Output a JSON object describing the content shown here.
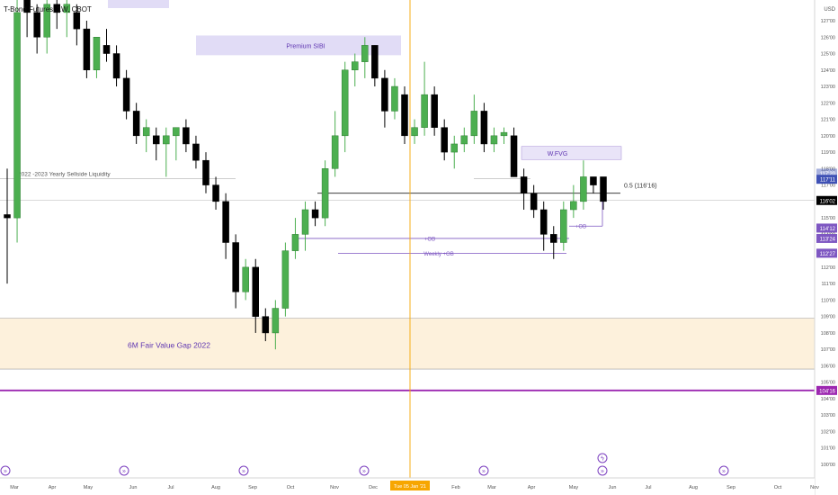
{
  "header": {
    "symbol_title": "T-Bond Futures, 1W, CBOT"
  },
  "price_scale": {
    "currency": "USD",
    "ticks": [
      "127'00",
      "126'00",
      "125'00",
      "124'00",
      "123'00",
      "122'00",
      "121'00",
      "120'00",
      "119'00",
      "118'00",
      "117'00",
      "116'00",
      "115'00",
      "114'00",
      "113'00",
      "112'00",
      "111'00",
      "110'00",
      "109'00",
      "108'00",
      "107'00",
      "106'00",
      "105'00",
      "104'00",
      "103'00",
      "102'00",
      "101'00",
      "100'00"
    ]
  },
  "time_axis": {
    "labels": [
      "Mar",
      "Apr",
      "May",
      "Jun",
      "Jul",
      "Aug",
      "Sep",
      "Oct",
      "Nov",
      "Dec",
      "Feb",
      "Mar",
      "Apr",
      "May",
      "Jun",
      "Jul",
      "Aug",
      "Sep",
      "Oct",
      "Nov"
    ],
    "crosshair_date": "Tue 05 Jan '21"
  },
  "annotations": {
    "premium_sibi": "Premium SIBI",
    "yearly_liquidity": "2022 -2023 Yearly Sellside Liquidity",
    "fvg_6m": "6M Fair Value Gap 2022",
    "wfvg": "W.FVG",
    "fib_level": "0.5 (116'16)",
    "ob_plus": "+OB",
    "weekly_ob": "Weekly +OB",
    "ob_small": "+OB"
  },
  "price_labels": {
    "current": "116'02",
    "l1": "117'11",
    "l1_faint": "117'20",
    "l2": "114'12",
    "l3": "113'24",
    "l4": "112'27",
    "l5": "104'16"
  },
  "colors": {
    "up": "#4caf50",
    "down": "#000000",
    "premium_zone": "#e1dcf6",
    "fvg_zone": "#fdf1dc",
    "wfvg_zone": "#e9e4f8",
    "ob_line": "#7e57c2",
    "magenta_line": "#9c27b0",
    "crosshair": "#f7a600",
    "label_purple": "#5e35b1"
  },
  "chart_data": {
    "type": "candlestick",
    "title": "T-Bond Futures, 1W, CBOT",
    "ylim": [
      99.5,
      128.5
    ],
    "candles": [
      {
        "o": 115.2,
        "h": 118.0,
        "l": 111.0,
        "c": 115.0
      },
      {
        "o": 115.0,
        "h": 129.0,
        "l": 113.5,
        "c": 127.5
      },
      {
        "o": 128.5,
        "h": 130.0,
        "l": 126.0,
        "c": 127.5
      },
      {
        "o": 127.5,
        "h": 128.0,
        "l": 125.0,
        "c": 126.0
      },
      {
        "o": 126.0,
        "h": 128.5,
        "l": 125.0,
        "c": 128.0
      },
      {
        "o": 128.0,
        "h": 129.0,
        "l": 126.5,
        "c": 127.5
      },
      {
        "o": 127.5,
        "h": 128.5,
        "l": 126.0,
        "c": 128.0
      },
      {
        "o": 127.5,
        "h": 128.0,
        "l": 125.5,
        "c": 126.5
      },
      {
        "o": 126.5,
        "h": 127.0,
        "l": 123.5,
        "c": 124.0
      },
      {
        "o": 124.0,
        "h": 126.0,
        "l": 123.5,
        "c": 126.0
      },
      {
        "o": 125.5,
        "h": 126.5,
        "l": 124.5,
        "c": 125.0
      },
      {
        "o": 125.0,
        "h": 125.5,
        "l": 123.0,
        "c": 123.5
      },
      {
        "o": 123.5,
        "h": 124.0,
        "l": 121.0,
        "c": 121.5
      },
      {
        "o": 121.5,
        "h": 122.0,
        "l": 119.5,
        "c": 120.0
      },
      {
        "o": 120.0,
        "h": 121.0,
        "l": 119.0,
        "c": 120.5
      },
      {
        "o": 120.0,
        "h": 120.5,
        "l": 118.5,
        "c": 119.5
      },
      {
        "o": 119.5,
        "h": 120.5,
        "l": 117.5,
        "c": 120.0
      },
      {
        "o": 120.0,
        "h": 120.5,
        "l": 118.5,
        "c": 120.5
      },
      {
        "o": 120.5,
        "h": 121.0,
        "l": 119.0,
        "c": 119.5
      },
      {
        "o": 119.5,
        "h": 120.0,
        "l": 118.0,
        "c": 118.5
      },
      {
        "o": 118.5,
        "h": 119.0,
        "l": 116.5,
        "c": 117.0
      },
      {
        "o": 117.0,
        "h": 117.5,
        "l": 115.5,
        "c": 116.0
      },
      {
        "o": 116.0,
        "h": 116.5,
        "l": 112.5,
        "c": 113.5
      },
      {
        "o": 113.5,
        "h": 114.0,
        "l": 109.5,
        "c": 110.5
      },
      {
        "o": 110.5,
        "h": 112.5,
        "l": 110.0,
        "c": 112.0
      },
      {
        "o": 112.0,
        "h": 112.5,
        "l": 108.0,
        "c": 109.0
      },
      {
        "o": 109.0,
        "h": 109.5,
        "l": 107.5,
        "c": 108.0
      },
      {
        "o": 108.0,
        "h": 110.0,
        "l": 107.0,
        "c": 109.5
      },
      {
        "o": 109.5,
        "h": 113.5,
        "l": 109.0,
        "c": 113.0
      },
      {
        "o": 113.0,
        "h": 115.0,
        "l": 112.5,
        "c": 114.0
      },
      {
        "o": 114.0,
        "h": 116.0,
        "l": 113.0,
        "c": 115.5
      },
      {
        "o": 115.5,
        "h": 116.0,
        "l": 114.5,
        "c": 115.0
      },
      {
        "o": 115.0,
        "h": 118.5,
        "l": 114.5,
        "c": 118.0
      },
      {
        "o": 118.0,
        "h": 121.5,
        "l": 117.5,
        "c": 120.0
      },
      {
        "o": 120.0,
        "h": 124.5,
        "l": 119.0,
        "c": 124.0
      },
      {
        "o": 124.0,
        "h": 125.0,
        "l": 123.0,
        "c": 124.5
      },
      {
        "o": 124.5,
        "h": 126.0,
        "l": 123.5,
        "c": 125.5
      },
      {
        "o": 125.5,
        "h": 125.5,
        "l": 123.0,
        "c": 123.5
      },
      {
        "o": 123.5,
        "h": 124.0,
        "l": 120.5,
        "c": 121.5
      },
      {
        "o": 121.5,
        "h": 123.5,
        "l": 121.0,
        "c": 123.0
      },
      {
        "o": 122.5,
        "h": 123.0,
        "l": 119.5,
        "c": 120.0
      },
      {
        "o": 120.0,
        "h": 121.0,
        "l": 119.5,
        "c": 120.5
      },
      {
        "o": 120.5,
        "h": 124.5,
        "l": 120.0,
        "c": 122.5
      },
      {
        "o": 122.5,
        "h": 123.0,
        "l": 120.0,
        "c": 120.5
      },
      {
        "o": 120.5,
        "h": 121.0,
        "l": 118.5,
        "c": 119.0
      },
      {
        "o": 119.0,
        "h": 120.0,
        "l": 118.0,
        "c": 119.5
      },
      {
        "o": 119.5,
        "h": 120.5,
        "l": 119.0,
        "c": 120.0
      },
      {
        "o": 120.0,
        "h": 122.5,
        "l": 119.5,
        "c": 121.5
      },
      {
        "o": 121.5,
        "h": 122.0,
        "l": 119.0,
        "c": 119.5
      },
      {
        "o": 119.5,
        "h": 120.5,
        "l": 119.0,
        "c": 120.0
      },
      {
        "o": 120.0,
        "h": 120.5,
        "l": 119.5,
        "c": 120.2
      },
      {
        "o": 120.0,
        "h": 120.5,
        "l": 117.5,
        "c": 117.5
      },
      {
        "o": 117.5,
        "h": 118.0,
        "l": 115.5,
        "c": 116.5
      },
      {
        "o": 116.5,
        "h": 117.0,
        "l": 115.0,
        "c": 115.5
      },
      {
        "o": 115.5,
        "h": 116.0,
        "l": 113.0,
        "c": 114.0
      },
      {
        "o": 114.0,
        "h": 114.5,
        "l": 112.5,
        "c": 113.5
      },
      {
        "o": 113.5,
        "h": 116.0,
        "l": 113.0,
        "c": 115.5
      },
      {
        "o": 115.5,
        "h": 117.0,
        "l": 115.0,
        "c": 116.0
      },
      {
        "o": 116.0,
        "h": 118.5,
        "l": 115.5,
        "c": 117.5
      },
      {
        "o": 117.5,
        "h": 117.5,
        "l": 116.5,
        "c": 117.0
      },
      {
        "o": 117.5,
        "h": 117.5,
        "l": 115.5,
        "c": 116.0
      }
    ],
    "premium_sibi_zone": [
      124.9,
      126.1
    ],
    "fvg_6m_zone": [
      105.8,
      108.9
    ],
    "wfvg_zone": [
      118.55,
      119.35
    ],
    "yearly_liquidity_level": 117.4,
    "fib_0_5_level": 116.5,
    "current_price": 116.06,
    "ob_level": 113.75,
    "weekly_ob_level": 112.85,
    "magenta_level": 104.5
  }
}
